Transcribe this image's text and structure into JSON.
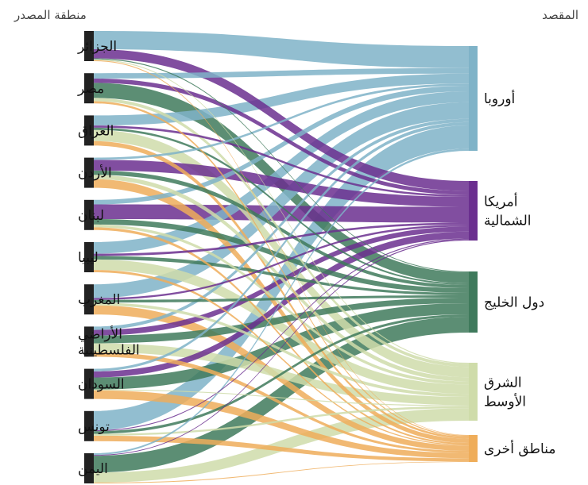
{
  "headers": {
    "source": "منطقة المصدر",
    "destination": "المقصد"
  },
  "colors": {
    "europe": "#7fb3c8",
    "north_america": "#6b2f8f",
    "gulf": "#3f7a5c",
    "middle_east": "#cfdcaa",
    "other": "#efad5a",
    "node_bar": "#222222"
  },
  "chart_data": {
    "type": "sankey",
    "title": "",
    "sources": [
      {
        "label": "الجزائر"
      },
      {
        "label": "مصر"
      },
      {
        "label": "العراق"
      },
      {
        "label": "الأردن"
      },
      {
        "label": "لبنان"
      },
      {
        "label": "ليبيا"
      },
      {
        "label": "المغرب"
      },
      {
        "label": "الأراضي\nالفلسطينية"
      },
      {
        "label": "السودان"
      },
      {
        "label": "تونس"
      },
      {
        "label": "اليمن"
      }
    ],
    "destinations": [
      {
        "label": "أوروبا",
        "color": "#7fb3c8"
      },
      {
        "label": "أمريكا\nالشمالية",
        "color": "#6b2f8f"
      },
      {
        "label": "دول الخليج",
        "color": "#3f7a5c"
      },
      {
        "label": "الشرق\nالأوسط",
        "color": "#cfdcaa"
      },
      {
        "label": "مناطق أخرى",
        "color": "#efad5a"
      }
    ],
    "flows_order": [
      "أوروبا",
      "أمريكا الشمالية",
      "دول الخليج",
      "الشرق الأوسط",
      "مناطق أخرى"
    ],
    "flows": [
      [
        20,
        10,
        1,
        1,
        1
      ],
      [
        5,
        4,
        14,
        3,
        2
      ],
      [
        9,
        2,
        2,
        10,
        4
      ],
      [
        2,
        10,
        4,
        4,
        8
      ],
      [
        5,
        16,
        6,
        3,
        3
      ],
      [
        10,
        2,
        3,
        9,
        2
      ],
      [
        15,
        2,
        3,
        3,
        10
      ],
      [
        3,
        5,
        7,
        8,
        4
      ],
      [
        3,
        7,
        14,
        1,
        10
      ],
      [
        21,
        1,
        3,
        2,
        6
      ],
      [
        2,
        1,
        20,
        12,
        1
      ]
    ]
  }
}
